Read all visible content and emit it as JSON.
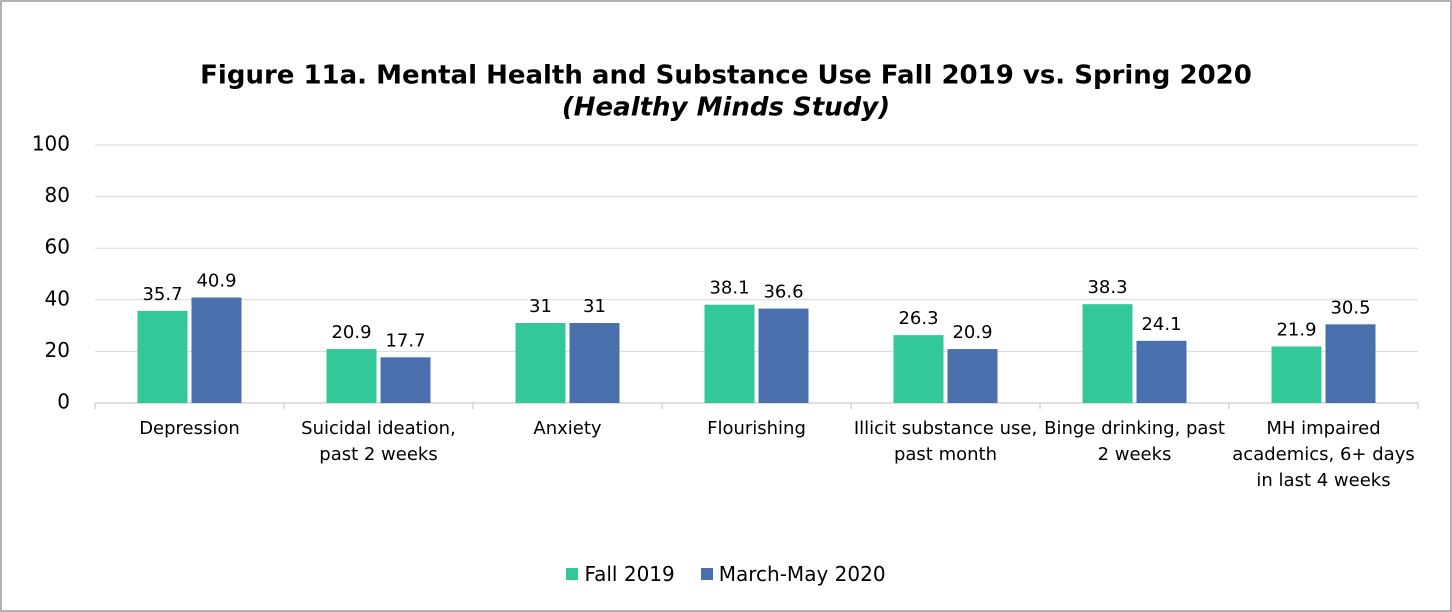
{
  "chart_data": {
    "type": "bar",
    "title": "Figure 11a. Mental Health and Substance Use Fall 2019 vs. Spring 2020",
    "subtitle": "(Healthy Minds Study)",
    "categories": [
      "Depression",
      "Suicidal ideation, past 2 weeks",
      "Anxiety",
      "Flourishing",
      "Illicit substance use, past month",
      "Binge drinking, past 2 weeks",
      "MH impaired academics, 6+ days in last 4 weeks"
    ],
    "series": [
      {
        "name": "Fall 2019",
        "color": "#33c89a",
        "values": [
          35.7,
          20.9,
          31,
          38.1,
          26.3,
          38.3,
          21.9
        ]
      },
      {
        "name": "March-May 2020",
        "color": "#4a6fad",
        "values": [
          40.9,
          17.7,
          31,
          36.6,
          20.9,
          24.1,
          30.5
        ]
      }
    ],
    "ylim": [
      0,
      100
    ],
    "yticks": [
      0,
      20,
      40,
      60,
      80,
      100
    ],
    "grid": true,
    "legend": "bottom"
  }
}
